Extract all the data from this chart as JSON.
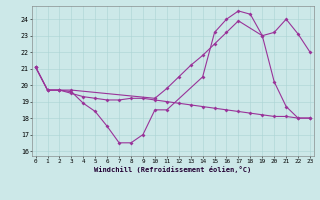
{
  "bg_color": "#cce8e8",
  "line_color": "#993399",
  "xlim": [
    -0.3,
    23.3
  ],
  "ylim": [
    15.7,
    24.8
  ],
  "yticks": [
    16,
    17,
    18,
    19,
    20,
    21,
    22,
    23,
    24
  ],
  "xticks": [
    0,
    1,
    2,
    3,
    4,
    5,
    6,
    7,
    8,
    9,
    10,
    11,
    12,
    13,
    14,
    15,
    16,
    17,
    18,
    19,
    20,
    21,
    22,
    23
  ],
  "xlabel": "Windchill (Refroidissement éolien,°C)",
  "line1_x": [
    0,
    1,
    2,
    3,
    4,
    5,
    6,
    7,
    8,
    9,
    10,
    11,
    14,
    15,
    16,
    17,
    18,
    19,
    20,
    21,
    22,
    23
  ],
  "line1_y": [
    21.1,
    19.7,
    19.7,
    19.6,
    18.9,
    18.4,
    17.5,
    16.5,
    16.5,
    17.0,
    18.5,
    18.5,
    20.5,
    23.2,
    24.0,
    24.5,
    24.3,
    23.0,
    20.2,
    18.7,
    18.0,
    18.0
  ],
  "line2_x": [
    0,
    1,
    2,
    3,
    10,
    11,
    12,
    13,
    14,
    15,
    16,
    17,
    19,
    20,
    21,
    22,
    23
  ],
  "line2_y": [
    21.1,
    19.7,
    19.7,
    19.7,
    19.2,
    19.8,
    20.5,
    21.2,
    21.8,
    22.5,
    23.2,
    23.9,
    23.0,
    23.2,
    24.0,
    23.1,
    22.0
  ],
  "line3_x": [
    0,
    1,
    2,
    3,
    4,
    5,
    6,
    7,
    8,
    9,
    10,
    11,
    12,
    13,
    14,
    15,
    16,
    17,
    18,
    19,
    20,
    21,
    22,
    23
  ],
  "line3_y": [
    21.1,
    19.7,
    19.7,
    19.5,
    19.3,
    19.2,
    19.1,
    19.1,
    19.2,
    19.2,
    19.1,
    19.0,
    18.9,
    18.8,
    18.7,
    18.6,
    18.5,
    18.4,
    18.3,
    18.2,
    18.1,
    18.1,
    18.0,
    18.0
  ]
}
